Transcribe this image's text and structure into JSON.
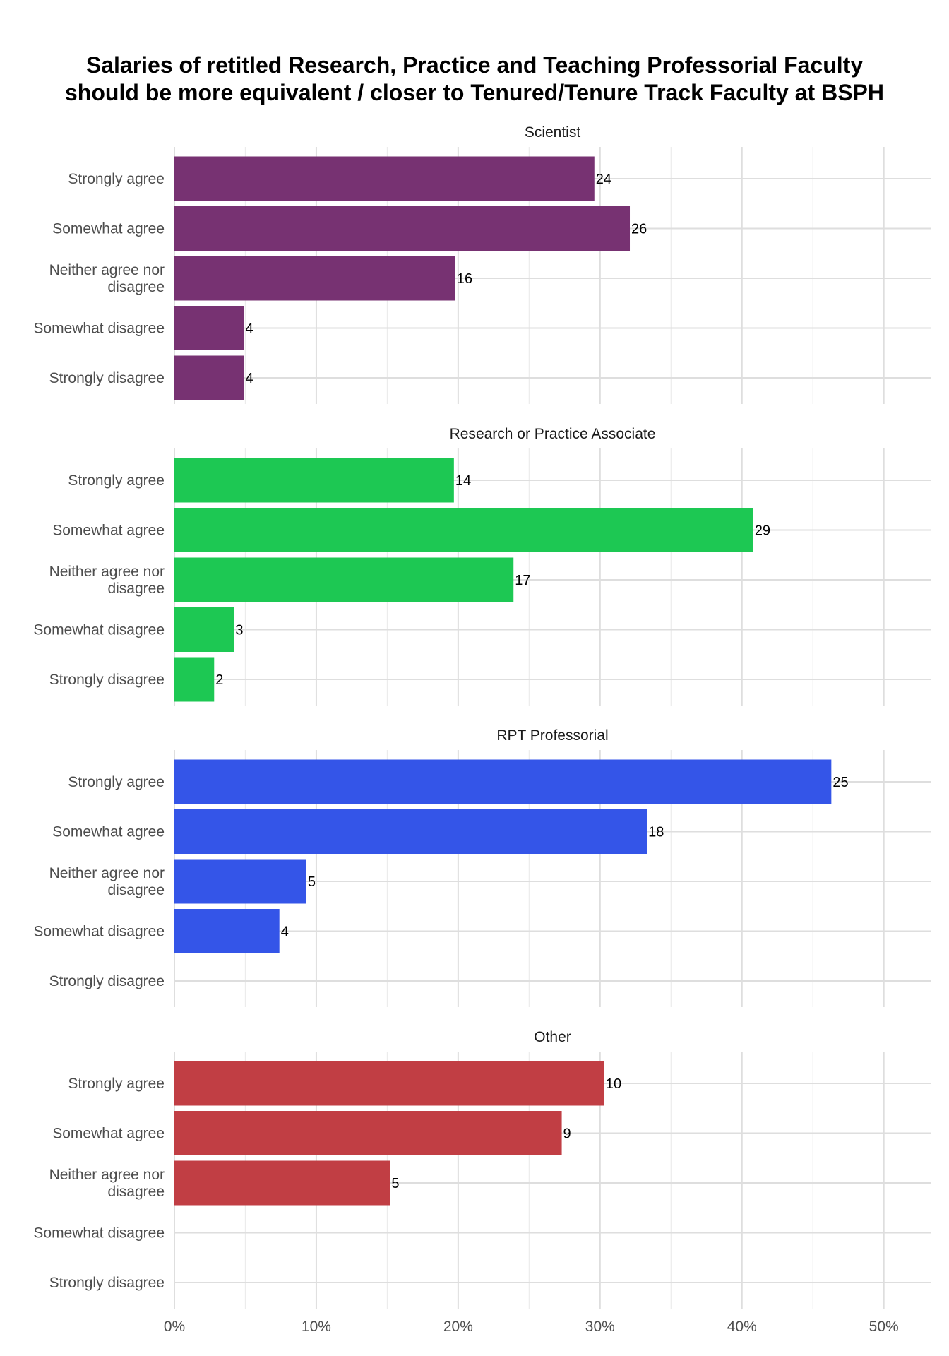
{
  "chart_data": {
    "type": "bar",
    "orientation": "horizontal",
    "title": "Salaries of retitled Research, Practice and Teaching Professorial Faculty should be more equivalent / closer to Tenured/Tenure Track Faculty at BSPH",
    "title_lines": [
      "Salaries of retitled Research, Practice and Teaching Professorial Faculty",
      "should be more equivalent / closer to Tenured/Tenure Track Faculty at BSPH"
    ],
    "categories": [
      "Strongly agree",
      "Somewhat agree",
      "Neither agree nor disagree",
      "Somewhat disagree",
      "Strongly disagree"
    ],
    "category_label_lines": [
      [
        "Strongly agree"
      ],
      [
        "Somewhat agree"
      ],
      [
        "Neither agree nor",
        "disagree"
      ],
      [
        "Somewhat disagree"
      ],
      [
        "Strongly disagree"
      ]
    ],
    "x_ticks": [
      0,
      10,
      20,
      30,
      40,
      50
    ],
    "x_tick_labels": [
      "0%",
      "10%",
      "20%",
      "30%",
      "40%",
      "50%"
    ],
    "xlim": [
      0,
      53.3
    ],
    "xlabel": "",
    "ylabel": "",
    "grid": true,
    "legend": "none",
    "facets": [
      {
        "name": "Scientist",
        "color": "#773272",
        "counts": [
          24,
          26,
          16,
          4,
          4
        ],
        "percent": [
          29.6,
          32.1,
          19.8,
          4.9,
          4.9
        ]
      },
      {
        "name": "Research or Practice Associate",
        "color": "#1dc853",
        "counts": [
          14,
          29,
          17,
          3,
          2
        ],
        "percent": [
          19.7,
          40.8,
          23.9,
          4.2,
          2.8
        ]
      },
      {
        "name": "RPT Professorial",
        "color": "#3455e8",
        "counts": [
          25,
          18,
          5,
          4,
          null
        ],
        "percent": [
          46.3,
          33.3,
          9.3,
          7.4,
          null
        ]
      },
      {
        "name": "Other",
        "color": "#c13e44",
        "counts": [
          10,
          9,
          5,
          null,
          null
        ],
        "percent": [
          30.3,
          27.3,
          15.2,
          null,
          null
        ]
      }
    ]
  }
}
